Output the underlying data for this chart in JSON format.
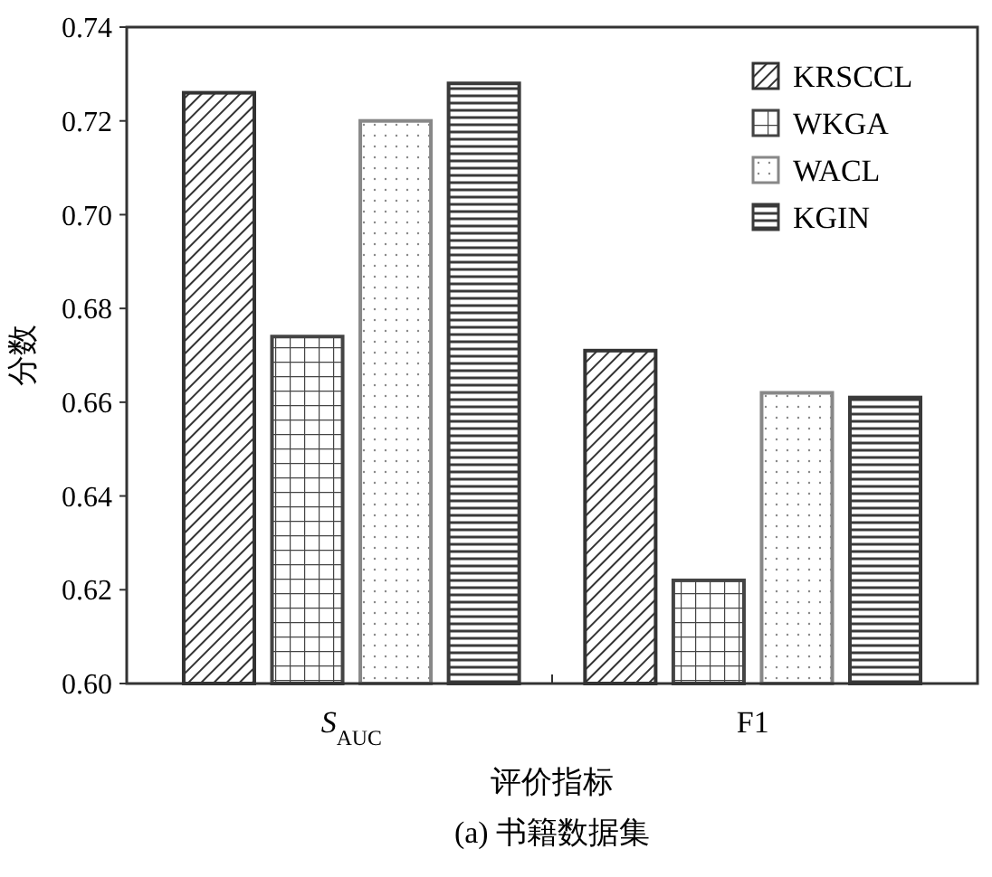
{
  "chart_data": {
    "type": "bar",
    "title": "(a) 书籍数据集",
    "xlabel": "评价指标",
    "ylabel": "分数",
    "categories": [
      "S$_{AUC}$",
      "F1"
    ],
    "series": [
      {
        "name": "KRSCCL",
        "color": "#333333",
        "values": [
          0.726,
          0.671
        ]
      },
      {
        "name": "WKGA",
        "color": "#444444",
        "values": [
          0.674,
          0.622
        ]
      },
      {
        "name": "WACL",
        "color": "#888888",
        "values": [
          0.72,
          0.662
        ]
      },
      {
        "name": "KGIN",
        "color": "#3a3a3a",
        "values": [
          0.728,
          0.661
        ]
      }
    ],
    "ylim": [
      0.6,
      0.74
    ],
    "yticks": [
      {
        "value": 0.6,
        "label": "0.60"
      },
      {
        "value": 0.62,
        "label": "0.62"
      },
      {
        "value": 0.64,
        "label": "0.64"
      },
      {
        "value": 0.66,
        "label": "0.66"
      },
      {
        "value": 0.68,
        "label": "0.68"
      },
      {
        "value": 0.7,
        "label": "0.70"
      },
      {
        "value": 0.72,
        "label": "0.72"
      },
      {
        "value": 0.74,
        "label": "0.74"
      }
    ],
    "legend": "top right",
    "grid": false
  }
}
